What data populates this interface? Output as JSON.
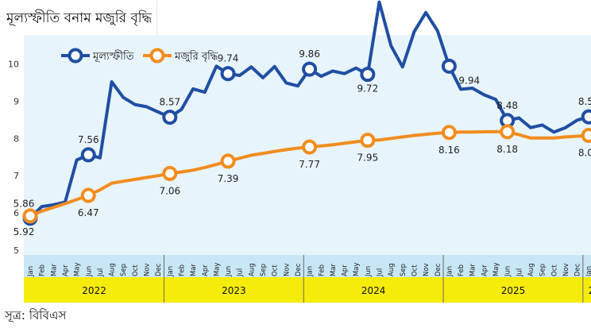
{
  "title": "মূল্যস্ফীতি বনাম মজুরি বৃদ্ধি",
  "source": "সূত্র: বিবিএস",
  "chart_data": {
    "type": "line",
    "ylim": [
      5,
      12
    ],
    "yticks": [
      5,
      6,
      7,
      8,
      9,
      10,
      11,
      12
    ],
    "months": [
      "Jan",
      "Feb",
      "Mar",
      "Apr",
      "May",
      "Jun",
      "Jul",
      "Aug",
      "Sep",
      "Oct",
      "Nov",
      "Dec",
      "Jan",
      "Feb",
      "Mar",
      "Apr",
      "May",
      "Jun",
      "Jul",
      "Aug",
      "Sep",
      "Oct",
      "Nov",
      "Dec",
      "Jan",
      "Feb",
      "Mar",
      "Apr",
      "May",
      "Jun",
      "Jul",
      "Aug",
      "Sep",
      "Oct",
      "Nov",
      "Dec",
      "Jan",
      "Feb",
      "Mar",
      "Apr",
      "May",
      "Jun",
      "Jul",
      "Aug",
      "Sep",
      "Oct",
      "Nov",
      "Dec",
      "Jan",
      "Feb",
      "Mar"
    ],
    "years": [
      {
        "label": "2022",
        "start": 0,
        "end": 11
      },
      {
        "label": "2023",
        "start": 12,
        "end": 23
      },
      {
        "label": "2024",
        "start": 24,
        "end": 35
      },
      {
        "label": "2025",
        "start": 36,
        "end": 47
      },
      {
        "label": "2026",
        "start": 48,
        "end": 50
      }
    ],
    "series": [
      {
        "name": "মূল্যস্ফীতি",
        "color": "#1f4ea3",
        "values": [
          5.86,
          6.17,
          6.22,
          6.29,
          7.42,
          7.56,
          7.48,
          9.52,
          9.1,
          8.91,
          8.85,
          8.71,
          8.57,
          8.78,
          9.33,
          9.24,
          9.94,
          9.74,
          9.69,
          9.92,
          9.63,
          9.93,
          9.49,
          9.41,
          9.86,
          9.67,
          9.81,
          9.74,
          9.89,
          9.72,
          11.66,
          10.49,
          9.92,
          10.87,
          11.38,
          10.89,
          9.94,
          9.32,
          9.35,
          9.17,
          9.05,
          8.48,
          8.55,
          8.29,
          8.36,
          8.17,
          8.29,
          8.49,
          8.58,
          9.1,
          8.71
        ],
        "markers": [
          {
            "index": 0,
            "label": "5.86"
          },
          {
            "index": 5,
            "label": "7.56"
          },
          {
            "index": 12,
            "label": "8.57"
          },
          {
            "index": 17,
            "label": "9.74"
          },
          {
            "index": 24,
            "label": "9.86"
          },
          {
            "index": 29,
            "label": "9.72"
          },
          {
            "index": 36,
            "label": "9.94"
          },
          {
            "index": 41,
            "label": "8.48"
          },
          {
            "index": 48,
            "label": "8.58"
          }
        ]
      },
      {
        "name": "মজুরি বৃদ্ধি",
        "color": "#f28c1e",
        "values": [
          5.92,
          6.05,
          6.15,
          6.25,
          6.36,
          6.47,
          6.62,
          6.8,
          6.85,
          6.9,
          6.95,
          7.0,
          7.06,
          7.1,
          7.15,
          7.22,
          7.3,
          7.39,
          7.47,
          7.55,
          7.6,
          7.65,
          7.7,
          7.74,
          7.77,
          7.8,
          7.83,
          7.87,
          7.91,
          7.95,
          7.96,
          8.0,
          8.04,
          8.08,
          8.11,
          8.14,
          8.16,
          8.17,
          8.17,
          8.18,
          8.18,
          8.18,
          8.1,
          8.01,
          8.01,
          8.01,
          8.04,
          8.06,
          8.08,
          8.07,
          8.1
        ],
        "markers": [
          {
            "index": 0,
            "label": "5.92"
          },
          {
            "index": 5,
            "label": "6.47"
          },
          {
            "index": 12,
            "label": "7.06"
          },
          {
            "index": 17,
            "label": "7.39"
          },
          {
            "index": 24,
            "label": "7.77"
          },
          {
            "index": 29,
            "label": "7.95"
          },
          {
            "index": 36,
            "label": "8.16"
          },
          {
            "index": 41,
            "label": "8.18"
          },
          {
            "index": 48,
            "label": "8.08"
          }
        ]
      }
    ]
  }
}
